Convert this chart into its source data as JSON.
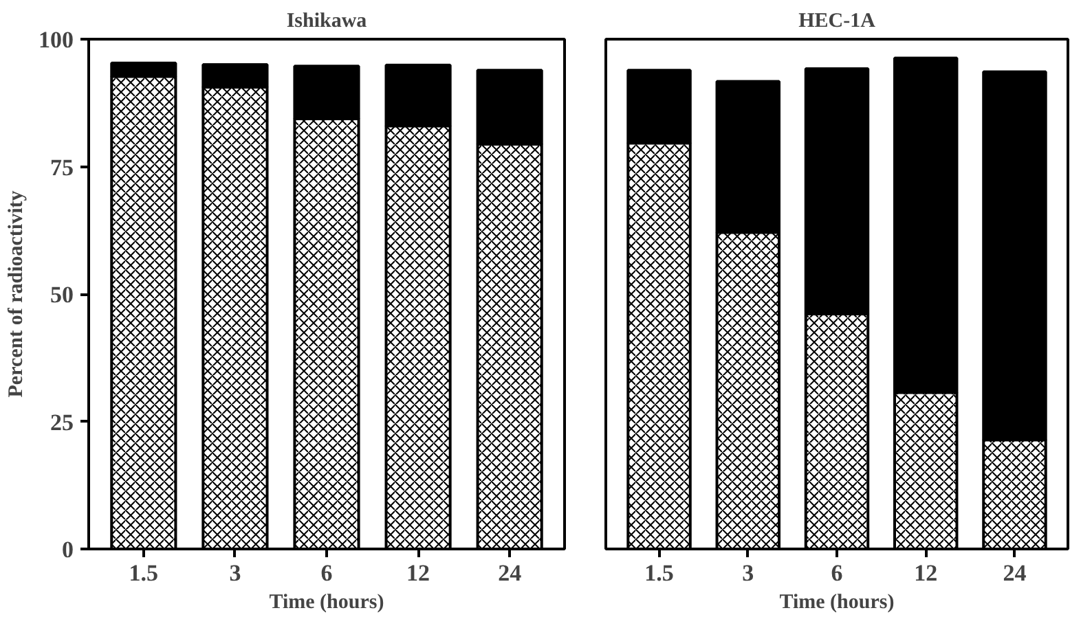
{
  "chart_data": [
    {
      "type": "bar",
      "title": "Ishikawa",
      "xlabel": "Time (hours)",
      "ylabel": "Percent of radioactivity",
      "categories": [
        "1.5",
        "3",
        "6",
        "12",
        "24"
      ],
      "stacked": true,
      "ylim": [
        0,
        100
      ],
      "yticks": [
        0,
        25,
        50,
        75,
        100
      ],
      "series": [
        {
          "color": "#ffffff",
          "values": [
            92.7,
            90.6,
            84.4,
            83.0,
            79.4
          ]
        },
        {
          "color": "#000000",
          "values": [
            2.6,
            4.4,
            10.3,
            11.9,
            14.5
          ]
        }
      ]
    },
    {
      "type": "bar",
      "title": "HEC-1A",
      "xlabel": "Time (hours)",
      "categories": [
        "1.5",
        "3",
        "6",
        "12",
        "24"
      ],
      "stacked": true,
      "ylim": [
        0,
        100
      ],
      "yticks": [
        0,
        25,
        50,
        75,
        100
      ],
      "tick_labels": "x",
      "series": [
        {
          "color": "#ffffff",
          "values": [
            79.6,
            62.1,
            46.1,
            30.7,
            21.4
          ]
        },
        {
          "color": "#000000",
          "values": [
            14.3,
            29.6,
            48.1,
            65.6,
            72.2
          ]
        }
      ]
    }
  ]
}
